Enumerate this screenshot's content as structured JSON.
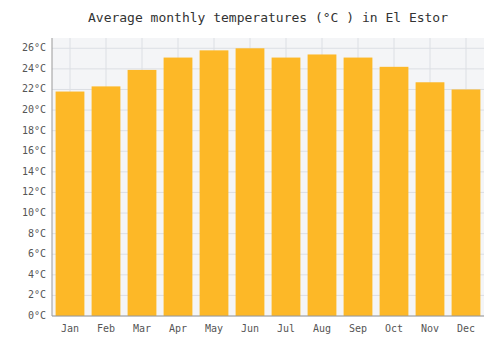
{
  "chart_data": {
    "type": "bar",
    "title": "Average monthly temperatures (°C ) in El Estor",
    "categories": [
      "Jan",
      "Feb",
      "Mar",
      "Apr",
      "May",
      "Jun",
      "Jul",
      "Aug",
      "Sep",
      "Oct",
      "Nov",
      "Dec"
    ],
    "values": [
      21.8,
      22.3,
      23.9,
      25.1,
      25.8,
      26.0,
      25.1,
      25.4,
      25.1,
      24.2,
      22.7,
      22.0
    ],
    "color": "#FDB827",
    "ylim": [
      0,
      27
    ],
    "yticks": [
      {
        "value": 0,
        "label": "0°C"
      },
      {
        "value": 2,
        "label": "2°C"
      },
      {
        "value": 4,
        "label": "4°C"
      },
      {
        "value": 6,
        "label": "6°C"
      },
      {
        "value": 8,
        "label": "8°C"
      },
      {
        "value": 10,
        "label": "10°C"
      },
      {
        "value": 12,
        "label": "12°C"
      },
      {
        "value": 14,
        "label": "14°C"
      },
      {
        "value": 16,
        "label": "16°C"
      },
      {
        "value": 18,
        "label": "18°C"
      },
      {
        "value": 20,
        "label": "20°C"
      },
      {
        "value": 22,
        "label": "22°C"
      },
      {
        "value": 24,
        "label": "24°C"
      },
      {
        "value": 26,
        "label": "26°C"
      }
    ],
    "grid": true
  }
}
